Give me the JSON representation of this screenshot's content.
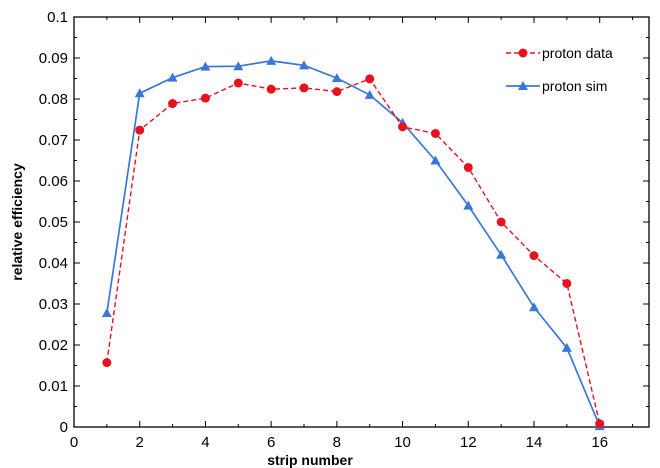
{
  "chart_data": {
    "type": "line",
    "xlabel": "strip number",
    "ylabel": "relative efficiency",
    "xlim": [
      0,
      17.5
    ],
    "ylim": [
      0,
      0.1
    ],
    "xticks": [
      0,
      2,
      4,
      6,
      8,
      10,
      12,
      14,
      16
    ],
    "yticks": [
      0,
      0.01,
      0.02,
      0.03,
      0.04,
      0.05,
      0.06,
      0.07,
      0.08,
      0.09,
      0.1
    ],
    "xtick_labels": [
      "0",
      "2",
      "4",
      "6",
      "8",
      "10",
      "12",
      "14",
      "16"
    ],
    "ytick_labels": [
      "0",
      "0.01",
      "0.02",
      "0.03",
      "0.04",
      "0.05",
      "0.06",
      "0.07",
      "0.08",
      "0.09",
      "0.1"
    ],
    "grid": false,
    "legend_position": "top-right",
    "series": [
      {
        "name": "proton data",
        "color": "#e8121e",
        "marker": "circle",
        "line_style": "dashed",
        "x": [
          1,
          2,
          3,
          4,
          5,
          6,
          7,
          8,
          9,
          10,
          11,
          12,
          13,
          14,
          15,
          16
        ],
        "y": [
          0.0157,
          0.0724,
          0.0789,
          0.0802,
          0.0839,
          0.0824,
          0.0827,
          0.0818,
          0.0849,
          0.0732,
          0.0716,
          0.0633,
          0.05,
          0.0418,
          0.035,
          0.0008
        ]
      },
      {
        "name": "proton sim",
        "color": "#3a78d8",
        "marker": "triangle",
        "line_style": "solid",
        "x": [
          1,
          2,
          3,
          4,
          5,
          6,
          7,
          8,
          9,
          10,
          11,
          12,
          13,
          14,
          15,
          16
        ],
        "y": [
          0.0278,
          0.0814,
          0.0852,
          0.0879,
          0.088,
          0.0893,
          0.0882,
          0.0851,
          0.081,
          0.0742,
          0.065,
          0.054,
          0.042,
          0.0292,
          0.0193,
          0.0002
        ]
      }
    ]
  }
}
